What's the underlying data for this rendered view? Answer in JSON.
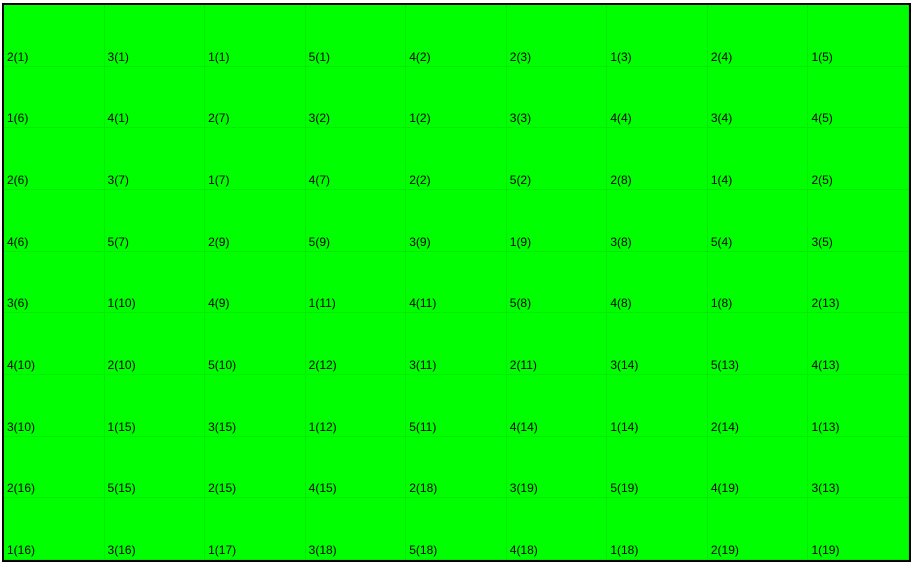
{
  "colors": {
    "board_background": "#00ff00",
    "border": "#000000",
    "text": "#000000"
  },
  "grid": {
    "rows": [
      [
        "2(1)",
        "3(1)",
        "1(1)",
        "5(1)",
        "4(2)",
        "2(3)",
        "1(3)",
        "2(4)",
        "1(5)"
      ],
      [
        "1(6)",
        "4(1)",
        "2(7)",
        "3(2)",
        "1(2)",
        "3(3)",
        "4(4)",
        "3(4)",
        "4(5)"
      ],
      [
        "2(6)",
        "3(7)",
        "1(7)",
        "4(7)",
        "2(2)",
        "5(2)",
        "2(8)",
        "1(4)",
        "2(5)"
      ],
      [
        "4(6)",
        "5(7)",
        "2(9)",
        "5(9)",
        "3(9)",
        "1(9)",
        "3(8)",
        "5(4)",
        "3(5)"
      ],
      [
        "3(6)",
        "1(10)",
        "4(9)",
        "1(11)",
        "4(11)",
        "5(8)",
        "4(8)",
        "1(8)",
        "2(13)"
      ],
      [
        "4(10)",
        "2(10)",
        "5(10)",
        "2(12)",
        "3(11)",
        "2(11)",
        "3(14)",
        "5(13)",
        "4(13)"
      ],
      [
        "3(10)",
        "1(15)",
        "3(15)",
        "1(12)",
        "5(11)",
        "4(14)",
        "1(14)",
        "2(14)",
        "1(13)"
      ],
      [
        "2(16)",
        "5(15)",
        "2(15)",
        "4(15)",
        "2(18)",
        "3(19)",
        "5(19)",
        "4(19)",
        "3(13)"
      ],
      [
        "1(16)",
        "3(16)",
        "1(17)",
        "3(18)",
        "5(18)",
        "4(18)",
        "1(18)",
        "2(19)",
        "1(19)"
      ]
    ]
  }
}
